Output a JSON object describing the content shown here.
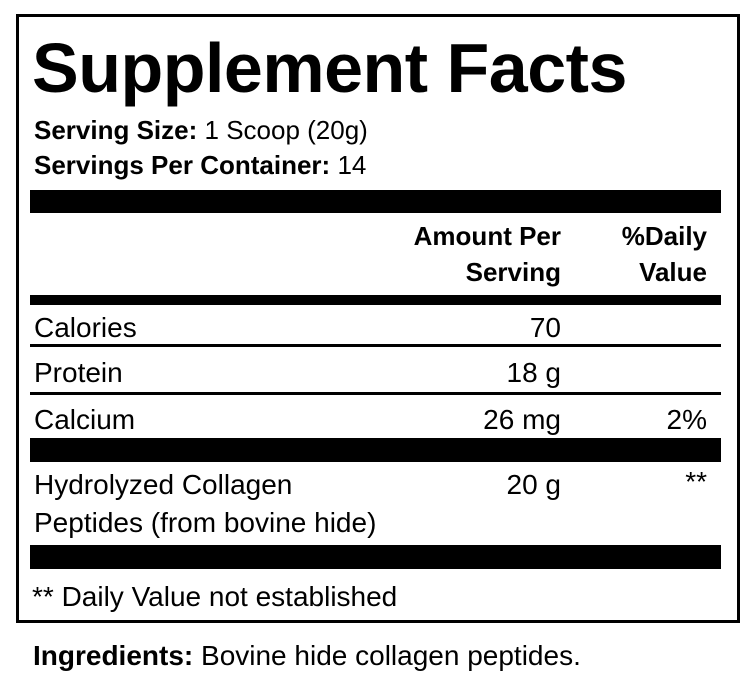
{
  "title": "Supplement Facts",
  "serving_size": {
    "label": "Serving Size:",
    "value": "1 Scoop (20g)"
  },
  "servings_per_container": {
    "label": "Servings Per Container:",
    "value": "14"
  },
  "header": {
    "amount_line1": "Amount Per",
    "amount_line2": "Serving",
    "dv_line1": "%Daily",
    "dv_line2": "Value"
  },
  "rows": [
    {
      "name": "Calories",
      "amount": "70",
      "dv": ""
    },
    {
      "name": "Protein",
      "amount": "18 g",
      "dv": ""
    },
    {
      "name": "Calcium",
      "amount": "26 mg",
      "dv": "2%"
    },
    {
      "name_line1": "Hydrolyzed Collagen",
      "name_line2": "Peptides (from bovine hide)",
      "amount": "20 g",
      "dv": "**"
    }
  ],
  "footnote": "** Daily Value not established",
  "ingredients": {
    "label": "Ingredients:",
    "value": "Bovine hide collagen peptides."
  }
}
